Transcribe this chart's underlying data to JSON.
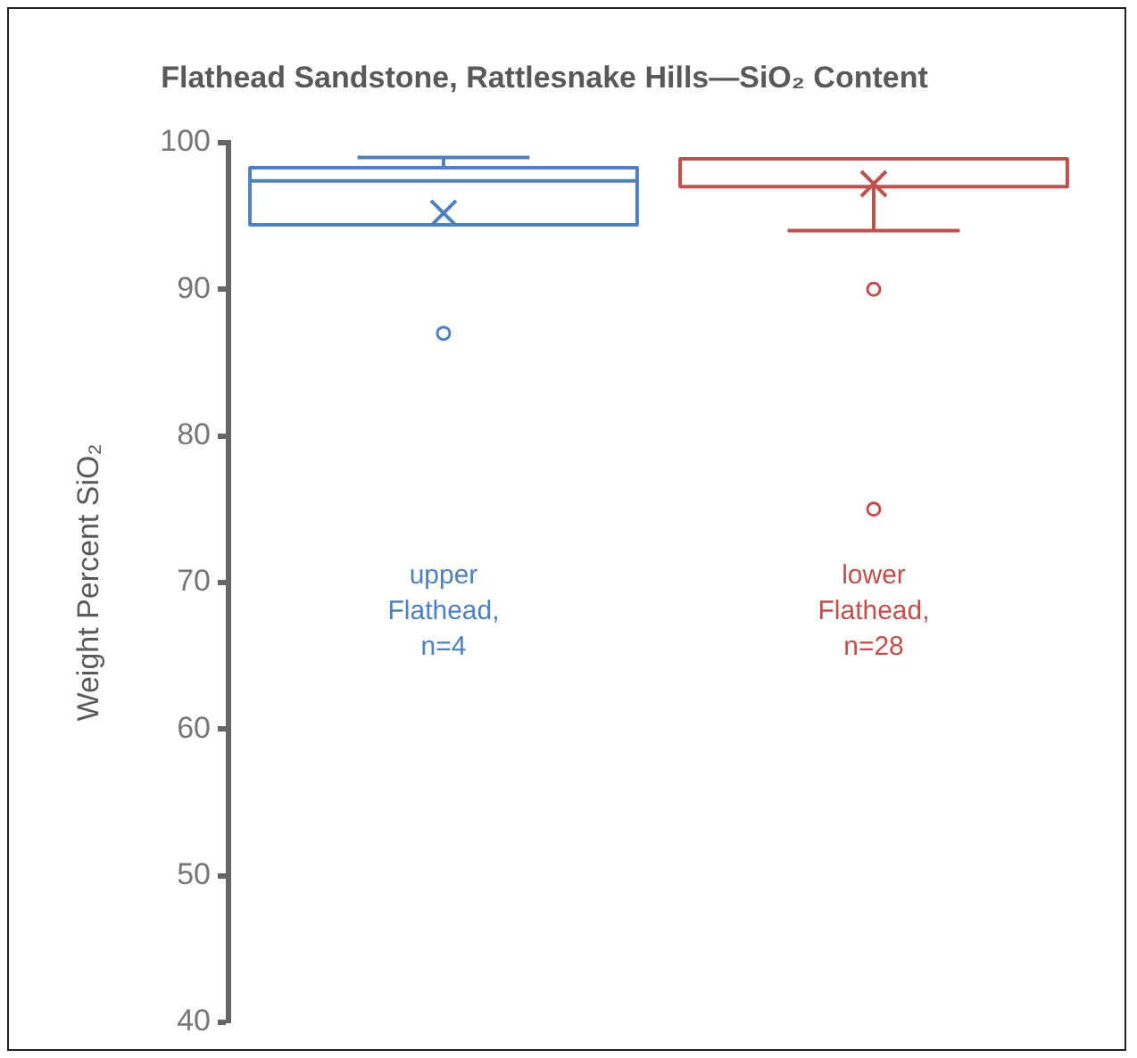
{
  "chart_data": {
    "type": "box",
    "title": "Flathead Sandstone, Rattlesnake Hills—SiO₂ Content",
    "ylabel": "Weight Percent SiO₂",
    "categories": [
      "upper Flathead, n=4",
      "lower Flathead, n=28"
    ],
    "colors": [
      "#4f81bd",
      "#c0504d"
    ],
    "boxes": [
      {
        "low": 94.4,
        "q1": 94.4,
        "median": 97.4,
        "q3": 98.3,
        "high": 99.0,
        "mean": 95.2,
        "outliers": [
          87
        ]
      },
      {
        "low": 94.0,
        "q1": 97.0,
        "median": 98.9,
        "q3": 98.9,
        "high": 98.9,
        "mean": 97.2,
        "outliers": [
          90,
          75
        ]
      }
    ],
    "ylim": [
      40,
      100
    ],
    "yticks": [
      40,
      50,
      60,
      70,
      80,
      90,
      100
    ],
    "grid": false,
    "legend": false
  }
}
